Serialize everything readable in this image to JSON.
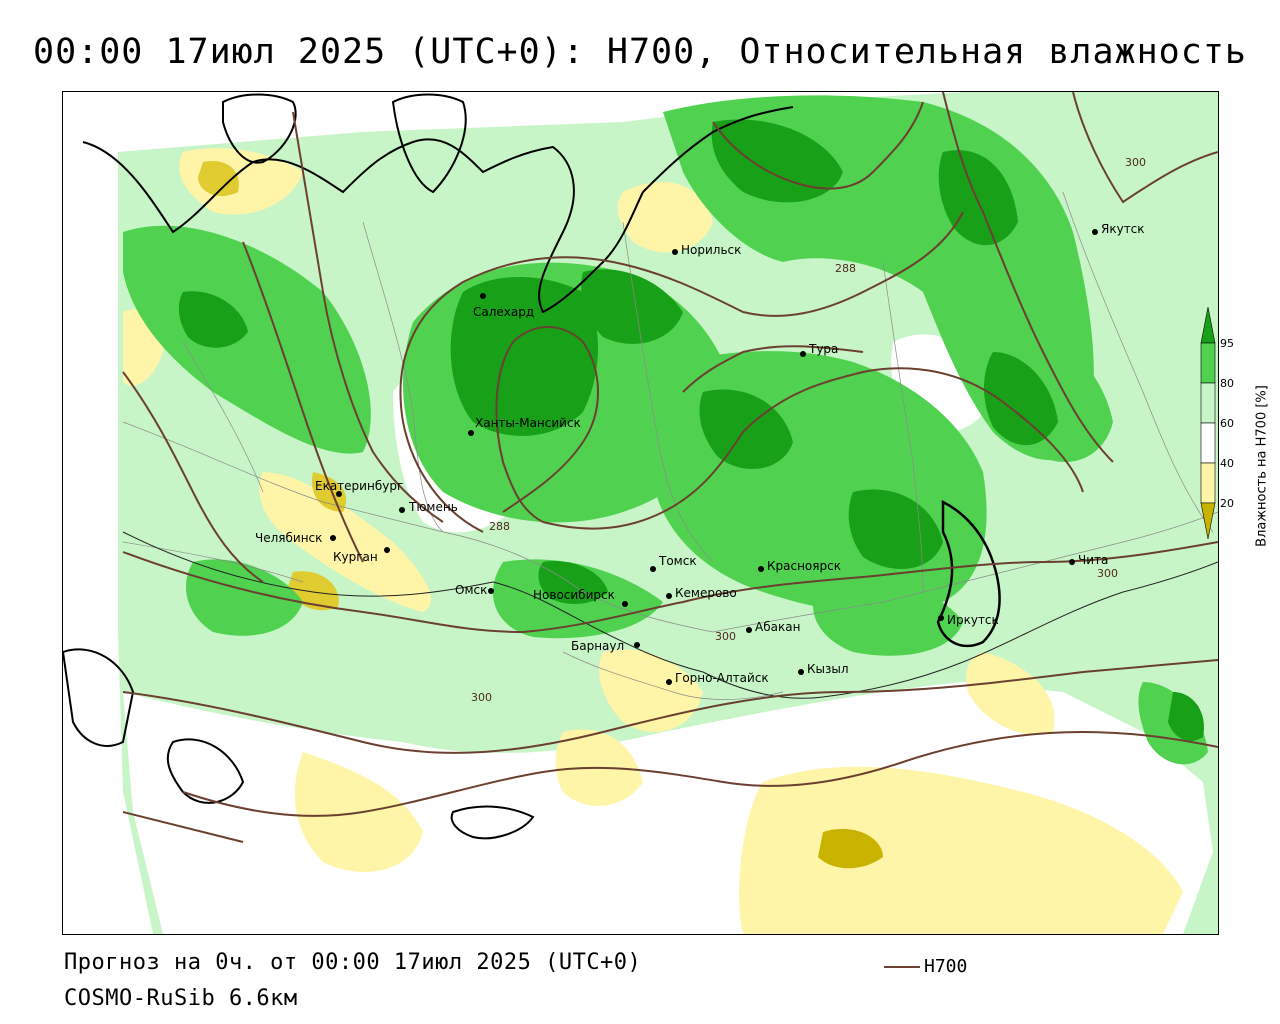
{
  "title": "00:00 17июл 2025 (UTC+0): H700, Относительная влажность",
  "footer": {
    "forecast": "Прогноз на 0ч. от 00:00 17июл 2025 (UTC+0)",
    "model": "COSMO-RuSib 6.6км"
  },
  "legend": {
    "line_label": "H700",
    "line_color": "#6b4030"
  },
  "colorbar": {
    "title": "Влажность на H700 [%]",
    "ticks": [
      "95",
      "80",
      "60",
      "40",
      "20"
    ],
    "colors": {
      "very_dry": "#c8b400",
      "dry": "#fff5a8",
      "neutral": "#ffffff",
      "light_green": "#c8f5c8",
      "green": "#50d250",
      "dark_green": "#19a019"
    }
  },
  "cities": [
    {
      "name": "Норильск"
    },
    {
      "name": "Якутск"
    },
    {
      "name": "Салехард"
    },
    {
      "name": "Тура"
    },
    {
      "name": "Ханты-Мансийск"
    },
    {
      "name": "Екатеринбург"
    },
    {
      "name": "Тюмень"
    },
    {
      "name": "Челябинск"
    },
    {
      "name": "Курган"
    },
    {
      "name": "Омск"
    },
    {
      "name": "Новосибирск"
    },
    {
      "name": "Томск"
    },
    {
      "name": "Кемерово"
    },
    {
      "name": "Красноярск"
    },
    {
      "name": "Барнаул"
    },
    {
      "name": "Абакан"
    },
    {
      "name": "Горно-Алтайск"
    },
    {
      "name": "Кызыл"
    },
    {
      "name": "Иркутск"
    },
    {
      "name": "Чита"
    }
  ],
  "contour_labels": [
    "300",
    "288",
    "288",
    "300",
    "300",
    "300"
  ]
}
